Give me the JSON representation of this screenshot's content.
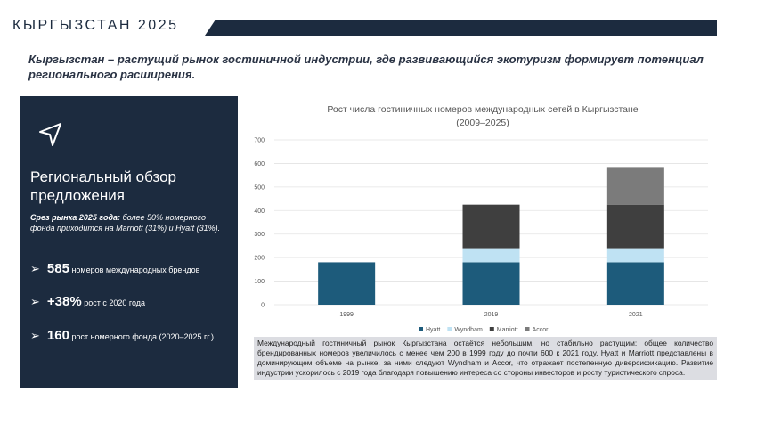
{
  "header": {
    "title": "КЫРГЫЗСТАН 2025",
    "lead": "Кыргызстан – растущий рынок гостиничной индустрии, где развивающийся экотуризм формирует потенциал регионального расширения."
  },
  "panel": {
    "heading": "Региональный обзор предложения",
    "note_bold": "Срез рынка 2025 года:",
    "note_text": "более 50% номерного фонда приходится на Marriott (31%) и Hyatt (31%).",
    "bullets": [
      {
        "value": "585",
        "text": "номеров международных брендов"
      },
      {
        "value": "+38%",
        "text": "рост с 2020 года"
      },
      {
        "value": "160",
        "text": "рост номерного фонда (2020–2025 гг.)"
      }
    ]
  },
  "chart_data": {
    "type": "stacked_bar",
    "title": "Рост числа гостиничных номеров международных сетей в Кыргызстане",
    "subtitle": "(2009–2025)",
    "categories": [
      "1999",
      "2019",
      "2021"
    ],
    "series": [
      {
        "name": "Hyatt",
        "color": "#1d5b7b",
        "values": [
          180,
          180,
          180
        ]
      },
      {
        "name": "Wyndham",
        "color": "#bfe2f3",
        "values": [
          0,
          60,
          60
        ]
      },
      {
        "name": "Marriott",
        "color": "#3f3f3f",
        "values": [
          0,
          185,
          185
        ]
      },
      {
        "name": "Accor",
        "color": "#7b7b7b",
        "values": [
          0,
          0,
          160
        ]
      }
    ],
    "ylim": [
      0,
      700
    ],
    "yticks": [
      0,
      100,
      200,
      300,
      400,
      500,
      600,
      700
    ],
    "grid": true,
    "legend": "bottom"
  },
  "description": "Международный гостиничный рынок Кыргызстана остаётся небольшим, но стабильно растущим: общее количество брендированных номеров увеличилось с менее чем 200 в 1999 году до почти 600 к 2021 году. Hyatt и Marriott представлены в доминирующем объеме на рынке, за ними следуют Wyndham и Accor, что отражает постепенную диверсификацию. Развитие индустрии ускорилось с 2019 года благодаря повышению интереса со стороны инвесторов и росту туристического спроса."
}
